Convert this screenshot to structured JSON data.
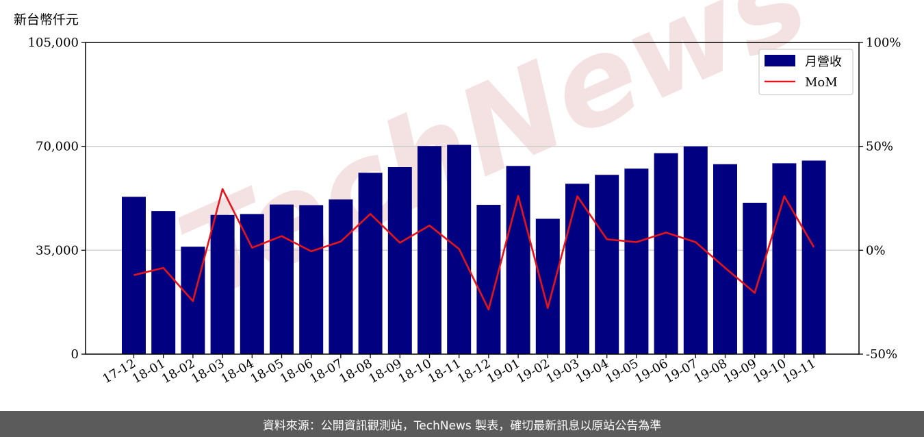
{
  "unit_label": "新台幣仟元",
  "footer_text": "資料來源：公開資訊觀測站，TechNews 製表，確切最新訊息以原站公告為準",
  "watermark_text": "TechNews",
  "colors": {
    "bar": "#000080",
    "line": "#e6141a",
    "grid": "#cccccc",
    "footer_bg": "#5b5b5b",
    "watermark": "#f3dede"
  },
  "chart_data": {
    "type": "bar",
    "categories": [
      "17-12",
      "18-01",
      "18-02",
      "18-03",
      "18-04",
      "18-05",
      "18-06",
      "18-07",
      "18-08",
      "18-09",
      "18-10",
      "18-11",
      "18-12",
      "19-01",
      "19-02",
      "19-03",
      "19-04",
      "19-05",
      "19-06",
      "19-07",
      "19-08",
      "19-09",
      "19-10",
      "19-11"
    ],
    "series": [
      {
        "name": "月營收",
        "type": "bar",
        "axis": "left",
        "values": [
          53000,
          48200,
          36200,
          46900,
          47200,
          50400,
          50200,
          52100,
          61100,
          63000,
          70100,
          70500,
          50300,
          63400,
          45600,
          57400,
          60400,
          62500,
          67700,
          70000,
          64000,
          51000,
          64300,
          65200
        ]
      },
      {
        "name": "MoM",
        "type": "line",
        "axis": "right",
        "values": [
          -12,
          -8.5,
          -24.5,
          29.5,
          1.2,
          6.8,
          -0.5,
          4.2,
          17.5,
          3.6,
          11.9,
          0.6,
          -28.5,
          26.2,
          -27.8,
          26.0,
          5.3,
          3.9,
          8.5,
          3.9,
          -8.5,
          -20.5,
          26.0,
          1.5
        ]
      }
    ],
    "y_left": {
      "lim": [
        0,
        105000
      ],
      "ticks": [
        "0",
        "35,000",
        "70,000",
        "105,000"
      ],
      "tick_values": [
        0,
        35000,
        70000,
        105000
      ]
    },
    "y_right": {
      "lim": [
        -50,
        100
      ],
      "ticks": [
        "-50%",
        "0%",
        "50%",
        "100%"
      ],
      "tick_values": [
        -50,
        0,
        50,
        100
      ]
    },
    "grid": "horizontal",
    "legend_position": "top-right"
  }
}
